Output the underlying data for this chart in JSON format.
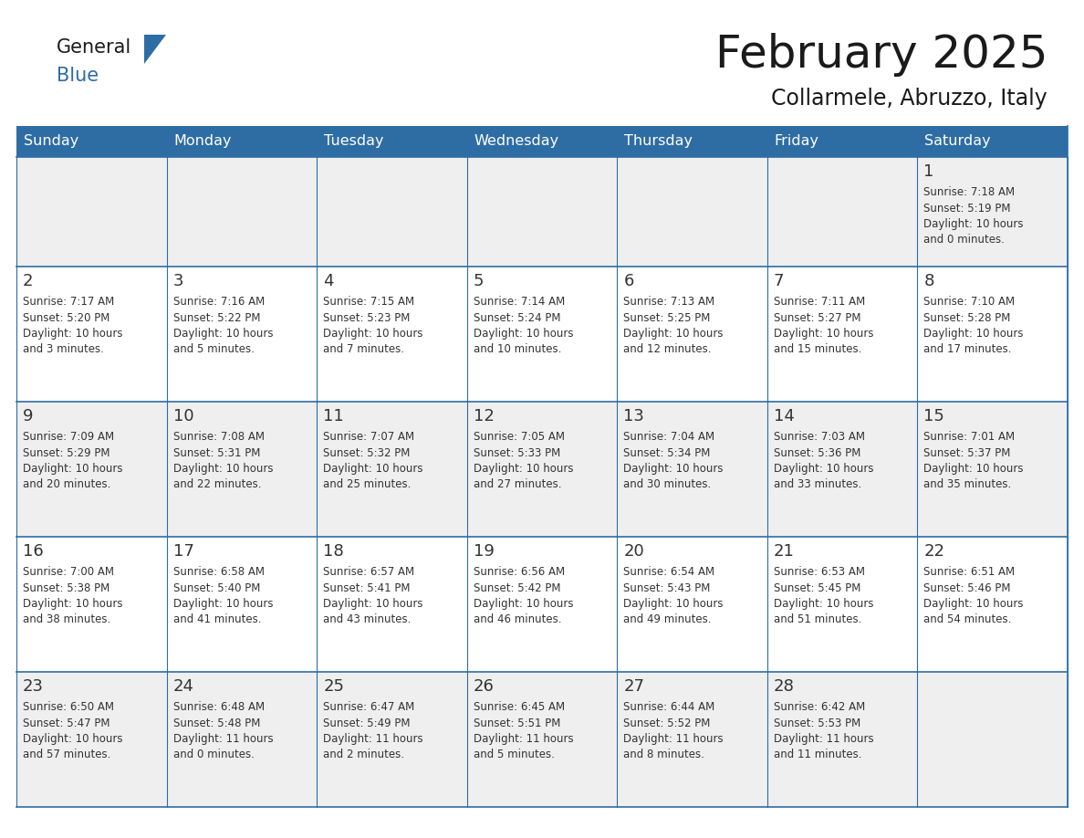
{
  "title": "February 2025",
  "subtitle": "Collarmele, Abruzzo, Italy",
  "header_bg": "#2E6DA4",
  "header_text_color": "#FFFFFF",
  "cell_bg_even": "#EFEFEF",
  "cell_bg_odd": "#FFFFFF",
  "border_color": "#2E6DA4",
  "text_color_dark": "#1a1a1a",
  "day_number_color": "#333333",
  "info_text_color": "#333333",
  "days_of_week": [
    "Sunday",
    "Monday",
    "Tuesday",
    "Wednesday",
    "Thursday",
    "Friday",
    "Saturday"
  ],
  "calendar_data": [
    [
      null,
      null,
      null,
      null,
      null,
      null,
      {
        "day": 1,
        "sunrise": "7:18 AM",
        "sunset": "5:19 PM",
        "daylight": "10 hours\nand 0 minutes."
      }
    ],
    [
      {
        "day": 2,
        "sunrise": "7:17 AM",
        "sunset": "5:20 PM",
        "daylight": "10 hours\nand 3 minutes."
      },
      {
        "day": 3,
        "sunrise": "7:16 AM",
        "sunset": "5:22 PM",
        "daylight": "10 hours\nand 5 minutes."
      },
      {
        "day": 4,
        "sunrise": "7:15 AM",
        "sunset": "5:23 PM",
        "daylight": "10 hours\nand 7 minutes."
      },
      {
        "day": 5,
        "sunrise": "7:14 AM",
        "sunset": "5:24 PM",
        "daylight": "10 hours\nand 10 minutes."
      },
      {
        "day": 6,
        "sunrise": "7:13 AM",
        "sunset": "5:25 PM",
        "daylight": "10 hours\nand 12 minutes."
      },
      {
        "day": 7,
        "sunrise": "7:11 AM",
        "sunset": "5:27 PM",
        "daylight": "10 hours\nand 15 minutes."
      },
      {
        "day": 8,
        "sunrise": "7:10 AM",
        "sunset": "5:28 PM",
        "daylight": "10 hours\nand 17 minutes."
      }
    ],
    [
      {
        "day": 9,
        "sunrise": "7:09 AM",
        "sunset": "5:29 PM",
        "daylight": "10 hours\nand 20 minutes."
      },
      {
        "day": 10,
        "sunrise": "7:08 AM",
        "sunset": "5:31 PM",
        "daylight": "10 hours\nand 22 minutes."
      },
      {
        "day": 11,
        "sunrise": "7:07 AM",
        "sunset": "5:32 PM",
        "daylight": "10 hours\nand 25 minutes."
      },
      {
        "day": 12,
        "sunrise": "7:05 AM",
        "sunset": "5:33 PM",
        "daylight": "10 hours\nand 27 minutes."
      },
      {
        "day": 13,
        "sunrise": "7:04 AM",
        "sunset": "5:34 PM",
        "daylight": "10 hours\nand 30 minutes."
      },
      {
        "day": 14,
        "sunrise": "7:03 AM",
        "sunset": "5:36 PM",
        "daylight": "10 hours\nand 33 minutes."
      },
      {
        "day": 15,
        "sunrise": "7:01 AM",
        "sunset": "5:37 PM",
        "daylight": "10 hours\nand 35 minutes."
      }
    ],
    [
      {
        "day": 16,
        "sunrise": "7:00 AM",
        "sunset": "5:38 PM",
        "daylight": "10 hours\nand 38 minutes."
      },
      {
        "day": 17,
        "sunrise": "6:58 AM",
        "sunset": "5:40 PM",
        "daylight": "10 hours\nand 41 minutes."
      },
      {
        "day": 18,
        "sunrise": "6:57 AM",
        "sunset": "5:41 PM",
        "daylight": "10 hours\nand 43 minutes."
      },
      {
        "day": 19,
        "sunrise": "6:56 AM",
        "sunset": "5:42 PM",
        "daylight": "10 hours\nand 46 minutes."
      },
      {
        "day": 20,
        "sunrise": "6:54 AM",
        "sunset": "5:43 PM",
        "daylight": "10 hours\nand 49 minutes."
      },
      {
        "day": 21,
        "sunrise": "6:53 AM",
        "sunset": "5:45 PM",
        "daylight": "10 hours\nand 51 minutes."
      },
      {
        "day": 22,
        "sunrise": "6:51 AM",
        "sunset": "5:46 PM",
        "daylight": "10 hours\nand 54 minutes."
      }
    ],
    [
      {
        "day": 23,
        "sunrise": "6:50 AM",
        "sunset": "5:47 PM",
        "daylight": "10 hours\nand 57 minutes."
      },
      {
        "day": 24,
        "sunrise": "6:48 AM",
        "sunset": "5:48 PM",
        "daylight": "11 hours\nand 0 minutes."
      },
      {
        "day": 25,
        "sunrise": "6:47 AM",
        "sunset": "5:49 PM",
        "daylight": "11 hours\nand 2 minutes."
      },
      {
        "day": 26,
        "sunrise": "6:45 AM",
        "sunset": "5:51 PM",
        "daylight": "11 hours\nand 5 minutes."
      },
      {
        "day": 27,
        "sunrise": "6:44 AM",
        "sunset": "5:52 PM",
        "daylight": "11 hours\nand 8 minutes."
      },
      {
        "day": 28,
        "sunrise": "6:42 AM",
        "sunset": "5:53 PM",
        "daylight": "11 hours\nand 11 minutes."
      },
      null
    ]
  ]
}
